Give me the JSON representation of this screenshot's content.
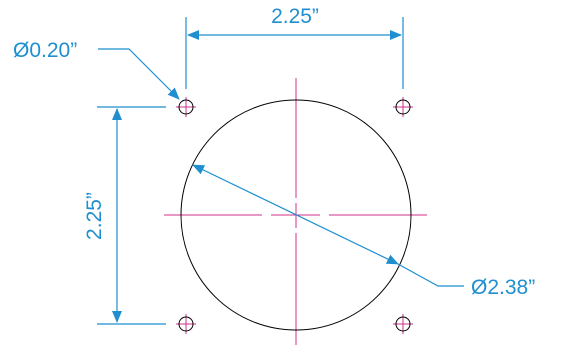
{
  "colors": {
    "dimension": "#1f8fd0",
    "centerline": "#d0308a",
    "outline": "#000000",
    "background": "#ffffff"
  },
  "dimensions": {
    "horizontal_spacing": "2.25”",
    "vertical_spacing": "2.25”",
    "mount_hole_diameter": "Ø0.20”",
    "cutout_diameter": "Ø2.38”"
  }
}
